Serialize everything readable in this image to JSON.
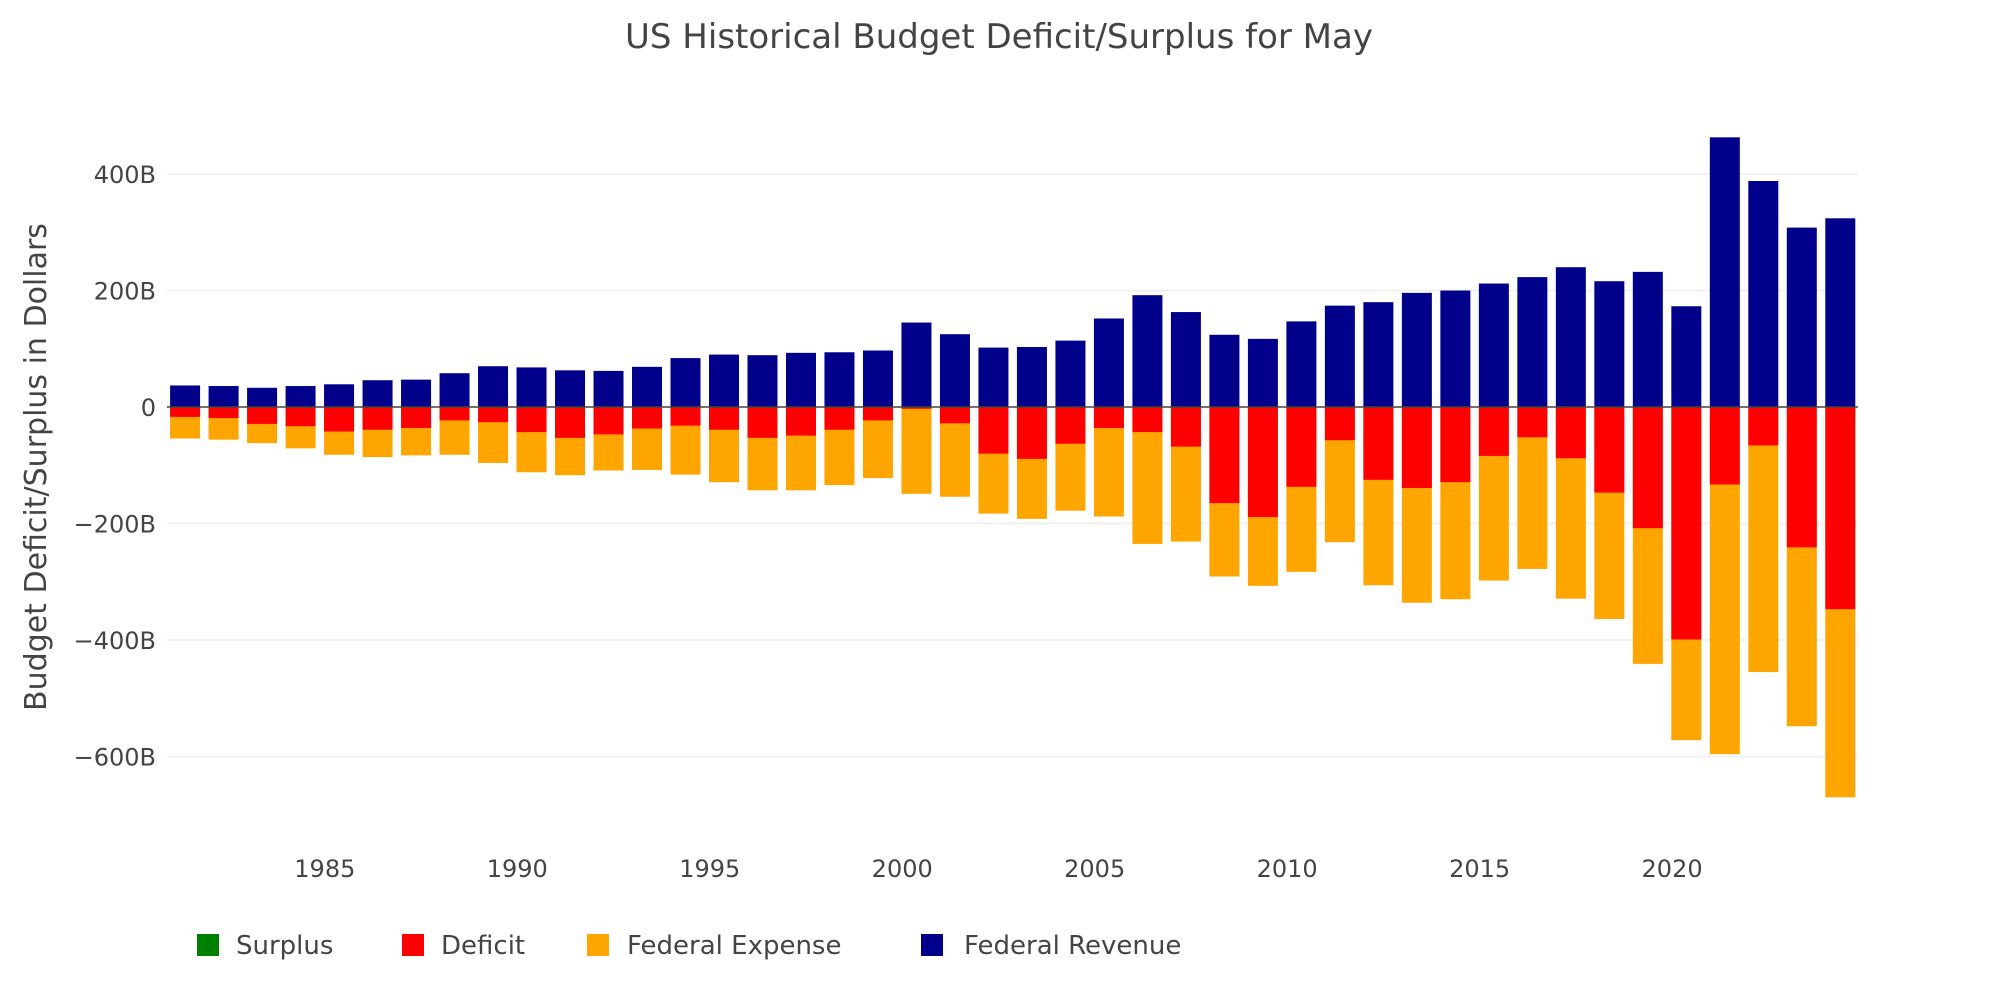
{
  "chart_data": {
    "type": "bar",
    "barmode": "overlay",
    "title": "US Historical Budget Deficit/Surplus for May",
    "xlabel": "",
    "ylabel": "Budget Deficit/Surplus in Dollars",
    "ylim": [
      -709,
      479
    ],
    "xlim": [
      1980.9,
      2024.83
    ],
    "grid": true,
    "legend_position": "bottom",
    "x_ticks": [
      "1985",
      "1990",
      "1995",
      "2000",
      "2005",
      "2010",
      "2015",
      "2020"
    ],
    "y_ticks": [
      {
        "value": 400,
        "label": "400B"
      },
      {
        "value": 200,
        "label": "200B"
      },
      {
        "value": 0,
        "label": "0"
      },
      {
        "value": -200,
        "label": "-200B"
      },
      {
        "value": -400,
        "label": "-400B"
      },
      {
        "value": -600,
        "label": "-600B"
      }
    ],
    "unit": "billions USD",
    "x": [
      1981,
      1982,
      1983,
      1984,
      1985,
      1986,
      1987,
      1988,
      1989,
      1990,
      1991,
      1992,
      1993,
      1994,
      1995,
      1996,
      1997,
      1998,
      1999,
      2000,
      2001,
      2002,
      2003,
      2004,
      2005,
      2006,
      2007,
      2008,
      2009,
      2010,
      2011,
      2012,
      2013,
      2014,
      2015,
      2016,
      2017,
      2018,
      2019,
      2020,
      2021,
      2022,
      2023,
      2024
    ],
    "series": [
      {
        "name": "Surplus",
        "color": "#008000",
        "values": [
          0,
          0,
          0,
          0,
          0,
          0,
          0,
          0,
          0,
          0,
          0,
          0,
          0,
          0,
          0,
          0,
          0,
          0,
          0,
          0,
          0,
          0,
          0,
          0,
          0,
          0,
          0,
          0,
          0,
          0,
          0,
          0,
          0,
          0,
          0,
          0,
          0,
          0,
          0,
          0,
          0,
          0,
          0,
          0
        ]
      },
      {
        "name": "Deficit",
        "color": "#ff0000",
        "values": [
          -17,
          -19,
          -29,
          -33,
          -42,
          -39,
          -36,
          -23,
          -26,
          -43,
          -53,
          -47,
          -37,
          -32,
          -39,
          -53,
          -49,
          -39,
          -23,
          -3,
          -28,
          -80,
          -89,
          -63,
          -36,
          -43,
          -68,
          -165,
          -189,
          -137,
          -57,
          -125,
          -139,
          -129,
          -84,
          -52,
          -88,
          -147,
          -208,
          -399,
          -133,
          -66,
          -241,
          -347
        ]
      },
      {
        "name": "Federal Expense",
        "color": "#ffa500",
        "values": [
          -54,
          -56,
          -62,
          -71,
          -82,
          -86,
          -83,
          -82,
          -96,
          -112,
          -117,
          -109,
          -108,
          -116,
          -129,
          -143,
          -143,
          -134,
          -122,
          -149,
          -154,
          -183,
          -192,
          -178,
          -188,
          -235,
          -231,
          -291,
          -307,
          -283,
          -232,
          -306,
          -336,
          -330,
          -298,
          -278,
          -329,
          -364,
          -441,
          -572,
          -596,
          -455,
          -548,
          -670
        ]
      },
      {
        "name": "Federal Revenue",
        "color": "#00008b",
        "values": [
          37,
          36,
          33,
          36,
          39,
          46,
          47,
          58,
          70,
          68,
          63,
          62,
          69,
          84,
          90,
          89,
          93,
          94,
          97,
          145,
          125,
          102,
          103,
          114,
          152,
          192,
          163,
          124,
          117,
          147,
          174,
          180,
          196,
          200,
          212,
          223,
          240,
          216,
          232,
          173,
          463,
          388,
          308,
          324
        ]
      }
    ]
  }
}
